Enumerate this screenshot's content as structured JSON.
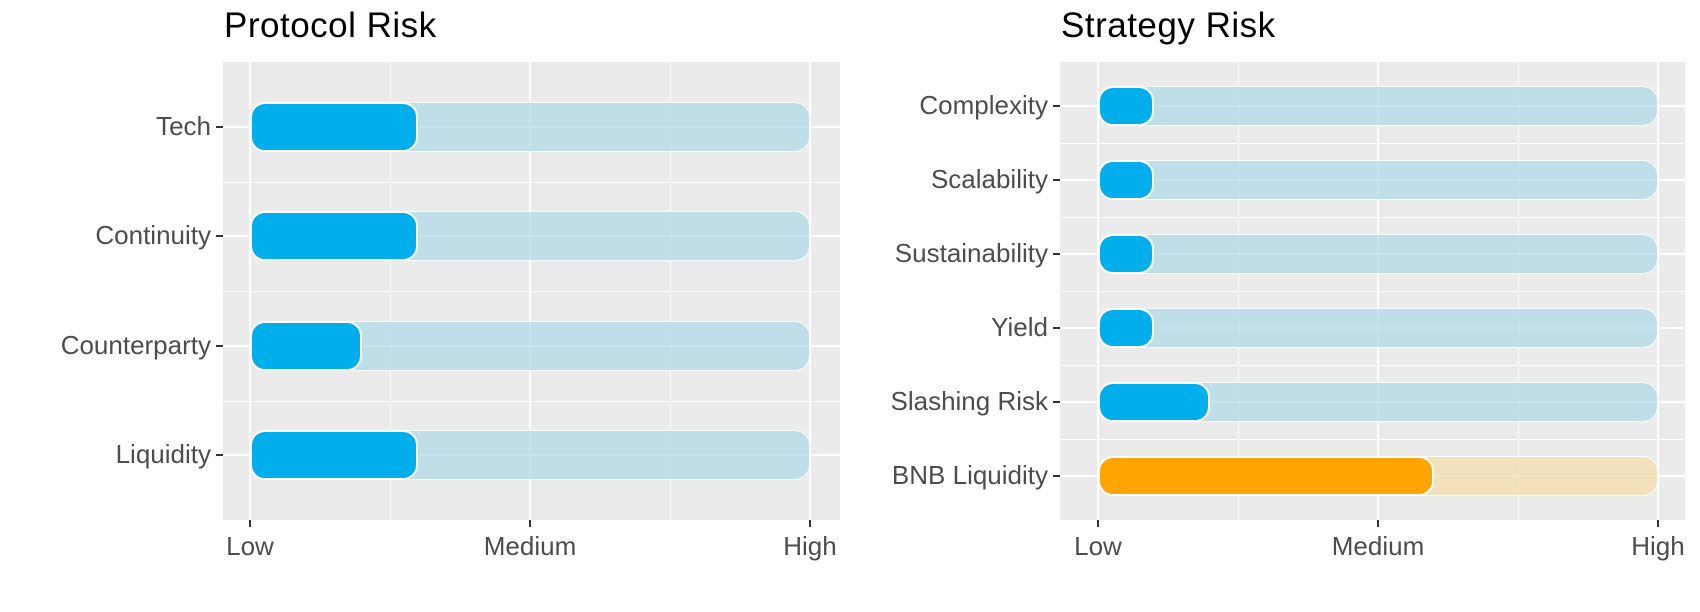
{
  "page": {
    "background": "#FFFFFF"
  },
  "colors": {
    "panel_bg": "#EBEBEB",
    "grid_line": "#FFFFFF",
    "title_text": "#000000",
    "axis_text": "#4D4D4D",
    "tick_mark": "#333333",
    "blue_fill": "#00AEEC",
    "blue_track": "rgba(173,216,230,0.70)",
    "orange_fill": "#FFA400",
    "orange_track": "rgba(245,222,179,0.80)",
    "bar_outline": "#FFFFFF"
  },
  "chart_data": [
    {
      "type": "bar",
      "orientation": "horizontal",
      "title": "Protocol Risk",
      "categories": [
        "Tech",
        "Continuity",
        "Counterparty",
        "Liquidity"
      ],
      "values": [
        30,
        30,
        20,
        30
      ],
      "track_full_value": 100,
      "x_range": [
        0,
        100
      ],
      "x_tick_labels": [
        "Low",
        "Medium",
        "High"
      ],
      "x_tick_values": [
        0,
        50,
        100
      ],
      "bar_colors": [
        "blue",
        "blue",
        "blue",
        "blue"
      ],
      "grid": "white major/minor on gray panel",
      "legend": "none"
    },
    {
      "type": "bar",
      "orientation": "horizontal",
      "title": "Strategy Risk",
      "categories": [
        "Complexity",
        "Scalability",
        "Sustainability",
        "Yield",
        "Slashing Risk",
        "BNB Liquidity"
      ],
      "values": [
        10,
        10,
        10,
        10,
        20,
        60
      ],
      "track_full_value": 100,
      "x_range": [
        0,
        100
      ],
      "x_tick_labels": [
        "Low",
        "Medium",
        "High"
      ],
      "x_tick_values": [
        0,
        50,
        100
      ],
      "bar_colors": [
        "blue",
        "blue",
        "blue",
        "blue",
        "blue",
        "orange"
      ],
      "grid": "white major/minor on gray panel",
      "legend": "none"
    }
  ]
}
